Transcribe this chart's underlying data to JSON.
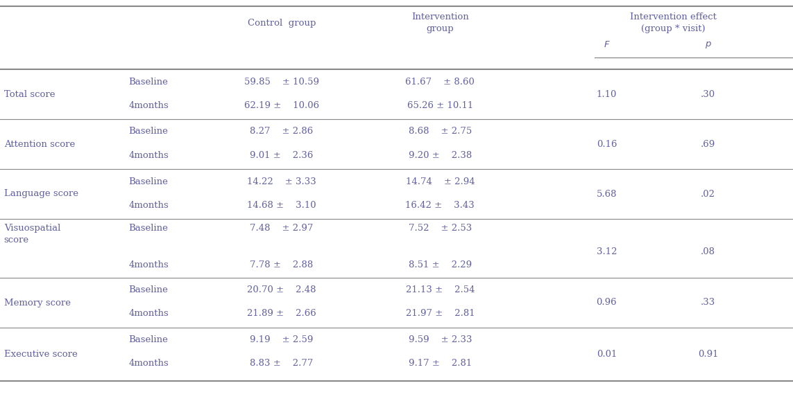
{
  "rows": [
    {
      "outcome": "Total score",
      "outcome_lines": [
        "Total score"
      ],
      "visits": [
        "Baseline",
        "4months"
      ],
      "control": [
        "59.85    ± 10.59",
        "62.19 ±    10.06"
      ],
      "intervention": [
        "61.67    ± 8.60",
        "65.26 ± 10.11"
      ],
      "F": "1.10",
      "p": ".30",
      "tall": false
    },
    {
      "outcome": "Attention score",
      "outcome_lines": [
        "Attention score"
      ],
      "visits": [
        "Baseline",
        "4months"
      ],
      "control": [
        "8.27    ± 2.86",
        "9.01 ±    2.36"
      ],
      "intervention": [
        "8.68    ± 2.75",
        "9.20 ±    2.38"
      ],
      "F": "0.16",
      "p": ".69",
      "tall": false
    },
    {
      "outcome": "Language score",
      "outcome_lines": [
        "Language score"
      ],
      "visits": [
        "Baseline",
        "4months"
      ],
      "control": [
        "14.22    ± 3.33",
        "14.68 ±    3.10"
      ],
      "intervention": [
        "14.74    ± 2.94",
        "16.42 ±    3.43"
      ],
      "F": "5.68",
      "p": ".02",
      "tall": false
    },
    {
      "outcome": "Visuospatial\nscore",
      "outcome_lines": [
        "Visuospatial",
        "score"
      ],
      "visits": [
        "Baseline",
        "4months"
      ],
      "control": [
        "7.48    ± 2.97",
        "7.78 ±    2.88"
      ],
      "intervention": [
        "7.52    ± 2.53",
        "8.51 ±    2.29"
      ],
      "F": "3.12",
      "p": ".08",
      "tall": true
    },
    {
      "outcome": "Memory score",
      "outcome_lines": [
        "Memory score"
      ],
      "visits": [
        "Baseline",
        "4months"
      ],
      "control": [
        "20.70 ±    2.48",
        "21.89 ±    2.66"
      ],
      "intervention": [
        "21.13 ±    2.54",
        "21.97 ±    2.81"
      ],
      "F": "0.96",
      "p": ".33",
      "tall": false
    },
    {
      "outcome": "Executive score",
      "outcome_lines": [
        "Executive score"
      ],
      "visits": [
        "Baseline",
        "4months"
      ],
      "control": [
        "9.19    ± 2.59",
        "8.83 ±    2.77"
      ],
      "intervention": [
        "9.59    ± 2.33",
        "9.17 ±    2.81"
      ],
      "F": "0.01",
      "p": "0.91",
      "tall": false
    }
  ],
  "text_color": "#6060a0",
  "header_color": "#6060a0",
  "line_color": "#888888",
  "bg_color": "#ffffff",
  "font_size": 9.5,
  "header_font_size": 9.5,
  "col_headers_row1": [
    "Control group",
    "Intervention\ngroup",
    "Intervention effect\n(group * visit)"
  ],
  "col_headers_row2_F": "F",
  "col_headers_row2_p": "p"
}
